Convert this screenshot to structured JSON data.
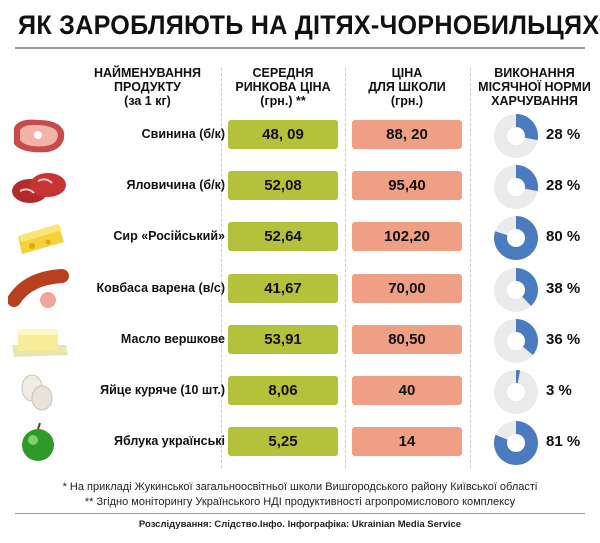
{
  "title": "ЯК ЗАРОБЛЯЮТЬ НА ДІТЯХ-ЧОРНОБИЛЬЦЯХ*",
  "headers": {
    "product": [
      "НАЙМЕНУВАННЯ",
      "ПРОДУКТУ",
      "(за 1 кг)"
    ],
    "market": [
      "СЕРЕДНЯ",
      "РИНКОВА ЦІНА",
      "(грн.) **"
    ],
    "school": [
      "ЦІНА",
      "ДЛЯ ШКОЛИ",
      "(грн.)"
    ],
    "norm": [
      "ВИКОНАННЯ",
      "МІСЯЧНОЇ НОРМИ",
      "ХАРЧУВАННЯ"
    ]
  },
  "colors": {
    "market": "#b3c23a",
    "school": "#ef9f83",
    "donut_fill": "#4a7bbf",
    "donut_bg": "#ebebeb"
  },
  "chart_data": {
    "type": "table",
    "columns": [
      "НАЙМЕНУВАННЯ ПРОДУКТУ (за 1 кг)",
      "СЕРЕДНЯ РИНКОВА ЦІНА (грн.) **",
      "ЦІНА ДЛЯ ШКОЛИ (грн.)",
      "ВИКОНАННЯ МІСЯЧНОЇ НОРМИ ХАРЧУВАННЯ"
    ],
    "rows": [
      {
        "icon": "pork-icon",
        "product": "Свинина  (б/к)",
        "market": "48, 09",
        "school": "88, 20",
        "norm": 28,
        "norm_label": "28 %"
      },
      {
        "icon": "beef-icon",
        "product": "Яловичина (б/к)",
        "market": "52,08",
        "school": "95,40",
        "norm": 28,
        "norm_label": "28 %"
      },
      {
        "icon": "cheese-icon",
        "product": "Сир «Російський»",
        "market": "52,64",
        "school": "102,20",
        "norm": 80,
        "norm_label": "80 %"
      },
      {
        "icon": "sausage-icon",
        "product": "Ковбаса варена (в/с)",
        "market": "41,67",
        "school": "70,00",
        "norm": 38,
        "norm_label": "38 %"
      },
      {
        "icon": "butter-icon",
        "product": "Масло вершкове",
        "market": "53,91",
        "school": "80,50",
        "norm": 36,
        "norm_label": "36 %"
      },
      {
        "icon": "eggs-icon",
        "product": "Яйце куряче (10 шт.)",
        "market": "8,06",
        "school": "40",
        "norm": 3,
        "norm_label": "3 %"
      },
      {
        "icon": "apple-icon",
        "product": "Яблука українські",
        "market": "5,25",
        "school": "14",
        "norm": 81,
        "norm_label": "81 %"
      }
    ]
  },
  "footnotes": [
    "* На прикладі Жукинської загальноосвітньої школи Вишгородського району Київської області",
    "** Згідно моніторингу Українського НДІ продуктивності агропромислового комплексу"
  ],
  "credit": "Розслідування: Слідство.Інфо. Інфографіка: Ukrainian Media Service"
}
